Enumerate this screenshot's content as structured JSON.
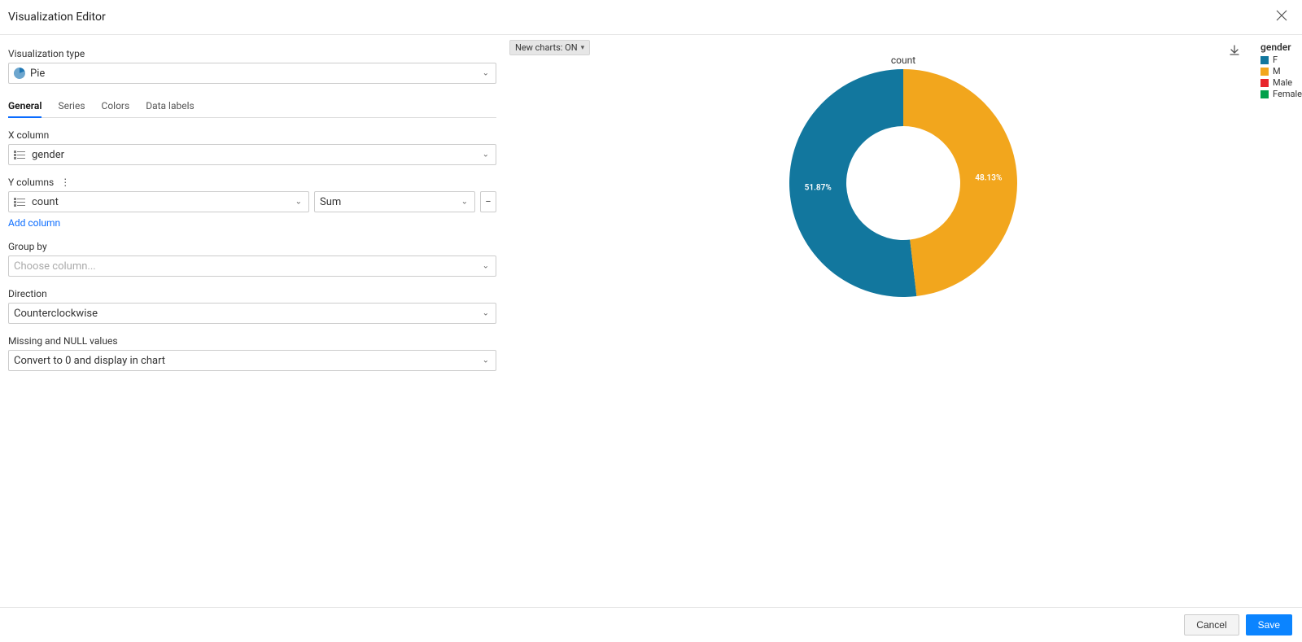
{
  "header": {
    "title": "Visualization Editor"
  },
  "viz_type": {
    "label": "Visualization type",
    "value": "Pie",
    "icon_color_a": "#1f77b4",
    "icon_color_b": "#1f77b4"
  },
  "tabs": [
    {
      "label": "General",
      "active": true
    },
    {
      "label": "Series",
      "active": false
    },
    {
      "label": "Colors",
      "active": false
    },
    {
      "label": "Data labels",
      "active": false
    }
  ],
  "x_column": {
    "label": "X column",
    "value": "gender"
  },
  "y_columns": {
    "label": "Y columns",
    "rows": [
      {
        "column": "count",
        "aggregation": "Sum"
      }
    ],
    "add_link": "Add column"
  },
  "group_by": {
    "label": "Group by",
    "placeholder": "Choose column..."
  },
  "direction": {
    "label": "Direction",
    "value": "Counterclockwise"
  },
  "missing": {
    "label": "Missing and NULL values",
    "value": "Convert to 0 and display in chart"
  },
  "toggle": {
    "label": "New charts: ON"
  },
  "chart": {
    "type": "pie",
    "title": "count",
    "inner_radius_pct": 50,
    "outer_radius_pct": 100,
    "slices": [
      {
        "key": "F",
        "label": "51.87%",
        "value": 51.87,
        "color": "#12779e"
      },
      {
        "key": "M",
        "label": "48.13%",
        "value": 48.13,
        "color": "#f2a61d"
      }
    ],
    "label_fontsize": 10,
    "label_color": "#ffffff",
    "background_color": "#ffffff"
  },
  "legend": {
    "title": "gender",
    "items": [
      {
        "label": "F",
        "color": "#12779e"
      },
      {
        "label": "M",
        "color": "#f2a61d"
      },
      {
        "label": "Male",
        "color": "#e8262d"
      },
      {
        "label": "Female",
        "color": "#00a14b"
      }
    ]
  },
  "footer": {
    "cancel": "Cancel",
    "save": "Save"
  }
}
